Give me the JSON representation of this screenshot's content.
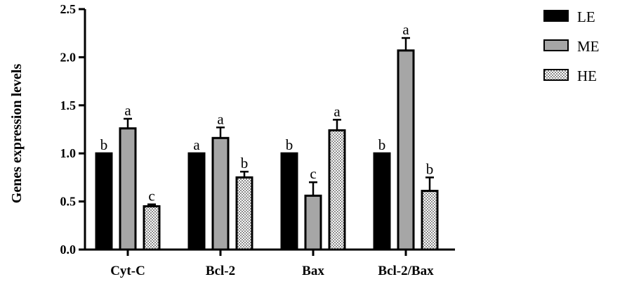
{
  "chart_data": {
    "type": "bar",
    "ylabel": "Genes expression levels",
    "ylim": [
      0,
      2.5
    ],
    "yticks": [
      "0.0",
      "0.5",
      "1.0",
      "1.5",
      "2.0",
      "2.5"
    ],
    "categories": [
      "Cyt-C",
      "Bcl-2",
      "Bax",
      "Bcl-2/Bax"
    ],
    "legend_position": "top-right",
    "series": [
      {
        "name": "LE",
        "fill": "solid",
        "color": "#000000",
        "values": [
          1.0,
          1.0,
          1.0,
          1.0
        ],
        "errors": [
          0,
          0,
          0,
          0
        ],
        "labels": [
          "b",
          "a",
          "b",
          "b"
        ]
      },
      {
        "name": "ME",
        "fill": "solid",
        "color": "#a6a6a6",
        "values": [
          1.26,
          1.16,
          0.56,
          2.07
        ],
        "errors": [
          0.1,
          0.11,
          0.14,
          0.13
        ],
        "labels": [
          "a",
          "a",
          "c",
          "a"
        ]
      },
      {
        "name": "HE",
        "fill": "checker",
        "color": "#ffffff",
        "values": [
          0.45,
          0.75,
          1.24,
          0.61
        ],
        "errors": [
          0.02,
          0.06,
          0.11,
          0.14
        ],
        "labels": [
          "c",
          "b",
          "a",
          "b"
        ]
      }
    ]
  }
}
